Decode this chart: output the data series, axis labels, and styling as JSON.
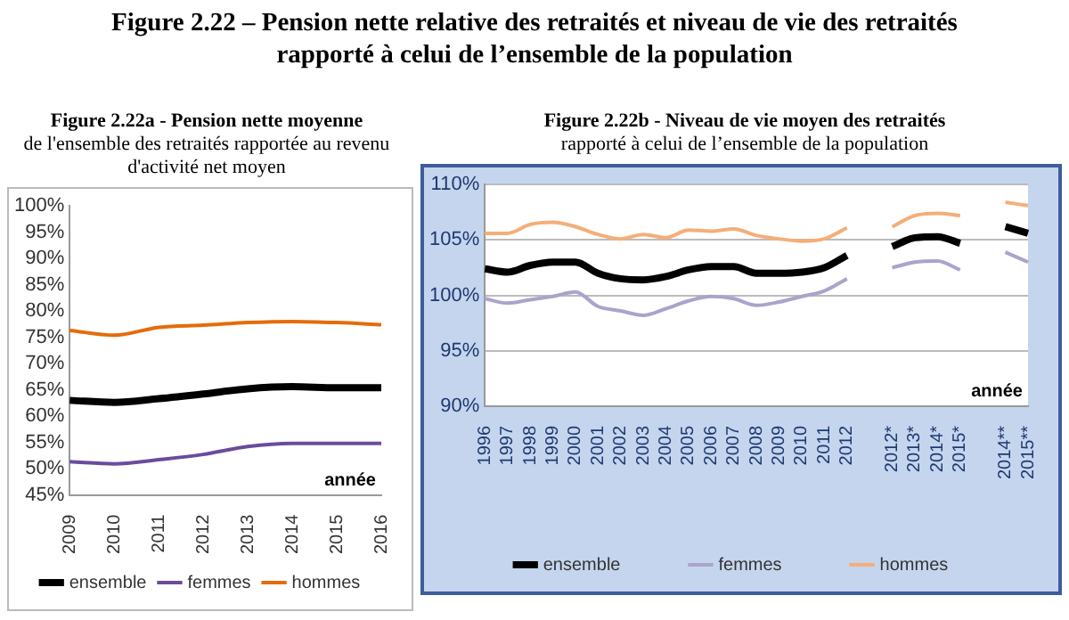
{
  "chart_data": [
    {
      "type": "line",
      "title": "Figure 2.22a - Pension nette moyenne",
      "subtitle": "de l'ensemble des retraités rapportée au revenu d'activité net moyen",
      "annotations": [
        "Figure 2.22 – Pension nette relative des retraités et niveau de vie des retraités rapporté à celui de l’ensemble de la population"
      ],
      "xlabel": "année",
      "categories": [
        "2009",
        "2010",
        "2011",
        "2012",
        "2013",
        "2014",
        "2015",
        "2016"
      ],
      "series": [
        {
          "name": "ensemble",
          "color": "#000000",
          "values": [
            63.0,
            62.6,
            63.3,
            64.2,
            65.2,
            65.6,
            65.4,
            65.4
          ]
        },
        {
          "name": "femmes",
          "color": "#6a4c9c",
          "values": [
            51.3,
            50.9,
            51.7,
            52.7,
            54.2,
            54.8,
            54.8,
            54.8
          ]
        },
        {
          "name": "hommes",
          "color": "#e46c0a",
          "values": [
            76.3,
            75.4,
            76.9,
            77.3,
            77.8,
            78.0,
            77.8,
            77.4
          ]
        }
      ],
      "ylim": [
        45,
        100
      ],
      "yticks": [
        {
          "value": 45,
          "label": "45%"
        },
        {
          "value": 50,
          "label": "50%"
        },
        {
          "value": 55,
          "label": "55%"
        },
        {
          "value": 60,
          "label": "60%"
        },
        {
          "value": 65,
          "label": "65%"
        },
        {
          "value": 70,
          "label": "70%"
        },
        {
          "value": 75,
          "label": "75%"
        },
        {
          "value": 80,
          "label": "80%"
        },
        {
          "value": 85,
          "label": "85%"
        },
        {
          "value": 90,
          "label": "90%"
        },
        {
          "value": 95,
          "label": "95%"
        },
        {
          "value": 100,
          "label": "100%"
        }
      ],
      "grid": false,
      "legend": "bottom",
      "marker": "none"
    },
    {
      "type": "line",
      "title": "Figure 2.22b - Niveau de vie moyen des retraités",
      "subtitle": "rapporté à celui de l’ensemble de la population",
      "xlabel": "année",
      "categories": [
        "1996",
        "1997",
        "1998",
        "1999",
        "2000",
        "2001",
        "2002",
        "2003",
        "2004",
        "2005",
        "2006",
        "2007",
        "2008",
        "2009",
        "2010",
        "2011",
        "2012",
        null,
        "2012*",
        "2013*",
        "2014*",
        "2015*",
        null,
        "2014**",
        "2015**"
      ],
      "series": [
        {
          "name": "ensemble",
          "color": "#000000",
          "values": [
            102.4,
            102.1,
            102.7,
            103.0,
            103.0,
            102.0,
            101.5,
            101.4,
            101.7,
            102.3,
            102.6,
            102.6,
            102.0,
            102.0,
            102.1,
            102.5,
            103.6,
            null,
            104.4,
            105.2,
            105.3,
            104.7,
            null,
            106.2,
            105.6
          ]
        },
        {
          "name": "femmes",
          "color": "#aaa4cc",
          "values": [
            99.7,
            99.3,
            99.6,
            99.9,
            100.3,
            99.0,
            98.6,
            98.2,
            98.8,
            99.5,
            99.9,
            99.7,
            99.1,
            99.4,
            99.9,
            100.4,
            101.5,
            null,
            102.5,
            103.0,
            103.1,
            102.3,
            null,
            103.9,
            103.0
          ]
        },
        {
          "name": "hommes",
          "color": "#f5ae78",
          "values": [
            105.6,
            105.6,
            106.4,
            106.6,
            106.2,
            105.5,
            105.1,
            105.5,
            105.2,
            105.9,
            105.8,
            106.0,
            105.4,
            105.1,
            104.9,
            105.1,
            106.1,
            null,
            106.2,
            107.2,
            107.4,
            107.2,
            null,
            108.4,
            108.1
          ]
        }
      ],
      "ylim": [
        90,
        110
      ],
      "yticks": [
        {
          "value": 90,
          "label": "90%"
        },
        {
          "value": 95,
          "label": "95%"
        },
        {
          "value": 100,
          "label": "100%"
        },
        {
          "value": 105,
          "label": "105%"
        },
        {
          "value": 110,
          "label": "110%"
        }
      ],
      "grid": "y",
      "legend": "bottom",
      "marker": "none"
    }
  ]
}
